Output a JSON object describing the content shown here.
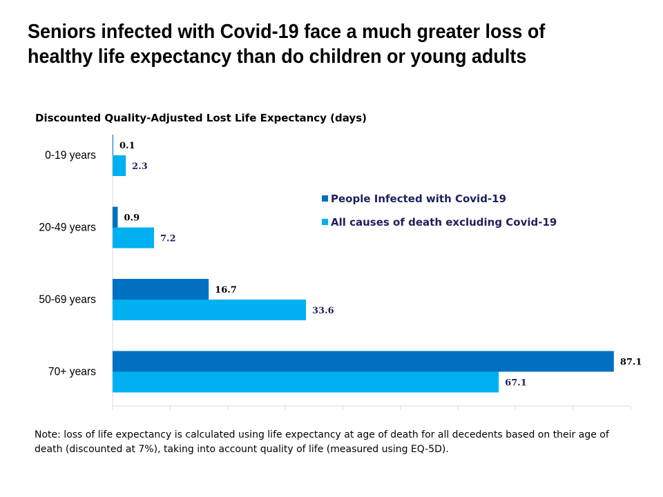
{
  "title": "Seniors infected with Covid-19 face a much greater loss of healthy life expectancy than do children or young adults",
  "note": "Note: loss of life expectancy is calculated using life expectancy at age of death for all decedents based on their age of death (discounted at 7%), taking into account quality of life (measured using EQ-5D).",
  "colors": {
    "covid": "#0070c0",
    "other": "#00b0f0",
    "label": "#1f1f5f"
  },
  "chart_data": {
    "type": "bar",
    "orientation": "horizontal",
    "title": "Discounted Quality-Adjusted Lost Life Expectancy (days)",
    "categories": [
      "0-19 years",
      "20-49 years",
      "50-69 years",
      "70+ years"
    ],
    "series": [
      {
        "name": "People Infected with Covid-19",
        "values": [
          0.1,
          0.9,
          16.7,
          87.1
        ]
      },
      {
        "name": "All causes of death excluding Covid-19",
        "values": [
          2.3,
          7.2,
          33.6,
          67.1
        ]
      }
    ],
    "xlim": [
      0,
      90
    ],
    "xtick_interval": 10,
    "grid": false,
    "legend": "right"
  }
}
